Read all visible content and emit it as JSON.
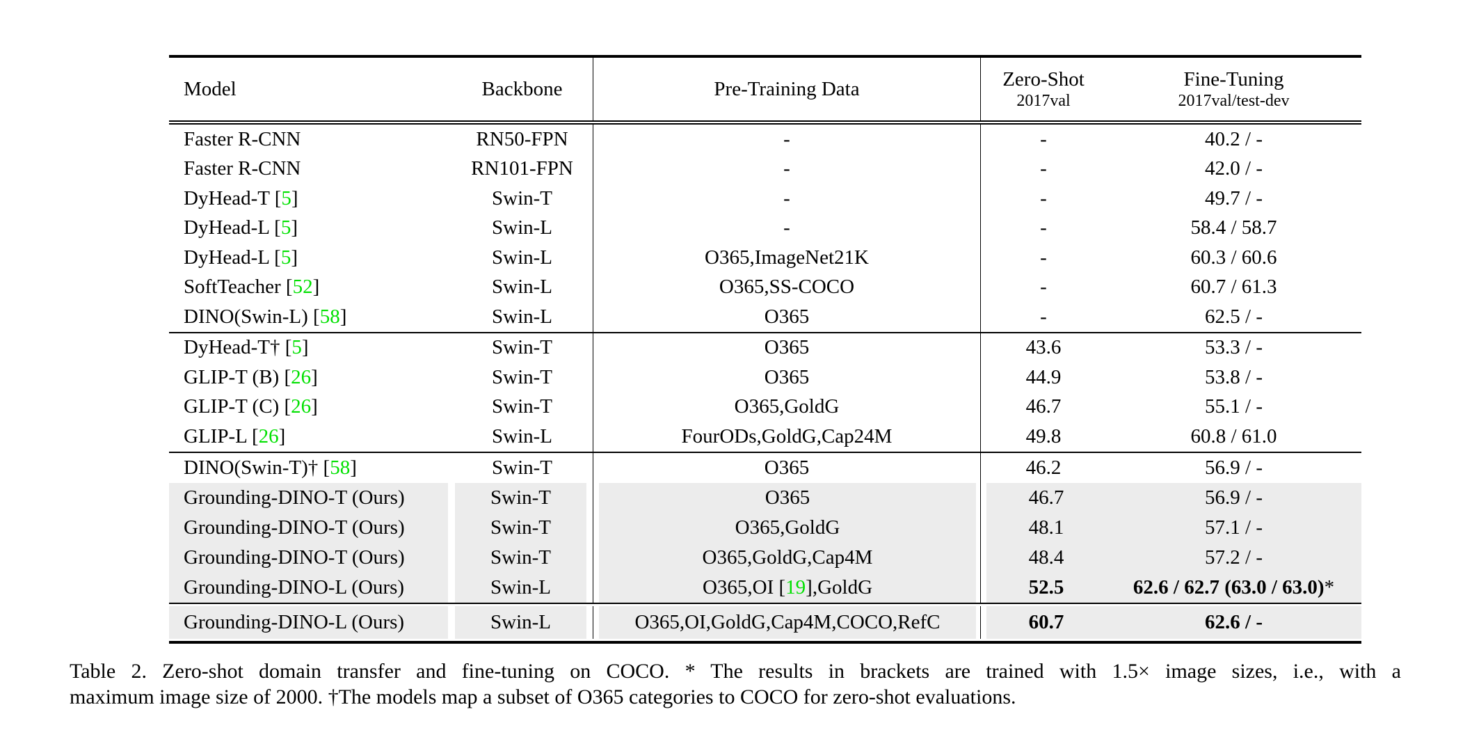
{
  "colors": {
    "citation_green": "#00e000",
    "row_highlight": "#ececec",
    "rule": "#000000"
  },
  "header": {
    "model": "Model",
    "backbone": "Backbone",
    "pretrain": "Pre-Training Data",
    "zero_shot_title": "Zero-Shot",
    "zero_shot_sub": "2017val",
    "fine_tuning_title": "Fine-Tuning",
    "fine_tuning_sub": "2017val/test-dev"
  },
  "blocks": [
    {
      "rows": [
        {
          "hl": false,
          "model": [
            {
              "t": "Faster R-CNN"
            }
          ],
          "backbone": "RN50-FPN",
          "pretrain": [
            {
              "t": "-"
            }
          ],
          "zeroshot": [
            {
              "t": "-"
            }
          ],
          "finetune": [
            {
              "t": "40.2 / -"
            }
          ]
        },
        {
          "hl": false,
          "model": [
            {
              "t": "Faster R-CNN"
            }
          ],
          "backbone": "RN101-FPN",
          "pretrain": [
            {
              "t": "-"
            }
          ],
          "zeroshot": [
            {
              "t": "-"
            }
          ],
          "finetune": [
            {
              "t": "42.0 / -"
            }
          ]
        },
        {
          "hl": false,
          "model": [
            {
              "t": "DyHead-T ["
            },
            {
              "t": "5",
              "g": true
            },
            {
              "t": "]"
            }
          ],
          "backbone": "Swin-T",
          "pretrain": [
            {
              "t": "-"
            }
          ],
          "zeroshot": [
            {
              "t": "-"
            }
          ],
          "finetune": [
            {
              "t": "49.7 / -"
            }
          ]
        },
        {
          "hl": false,
          "model": [
            {
              "t": "DyHead-L ["
            },
            {
              "t": "5",
              "g": true
            },
            {
              "t": "]"
            }
          ],
          "backbone": "Swin-L",
          "pretrain": [
            {
              "t": "-"
            }
          ],
          "zeroshot": [
            {
              "t": "-"
            }
          ],
          "finetune": [
            {
              "t": "58.4 / 58.7"
            }
          ]
        },
        {
          "hl": false,
          "model": [
            {
              "t": "DyHead-L ["
            },
            {
              "t": "5",
              "g": true
            },
            {
              "t": "]"
            }
          ],
          "backbone": "Swin-L",
          "pretrain": [
            {
              "t": "O365,ImageNet21K"
            }
          ],
          "zeroshot": [
            {
              "t": "-"
            }
          ],
          "finetune": [
            {
              "t": "60.3 / 60.6"
            }
          ]
        },
        {
          "hl": false,
          "model": [
            {
              "t": "SoftTeacher ["
            },
            {
              "t": "52",
              "g": true
            },
            {
              "t": "]"
            }
          ],
          "backbone": "Swin-L",
          "pretrain": [
            {
              "t": "O365,SS-COCO"
            }
          ],
          "zeroshot": [
            {
              "t": "-"
            }
          ],
          "finetune": [
            {
              "t": "60.7 / 61.3"
            }
          ]
        },
        {
          "hl": false,
          "model": [
            {
              "t": "DINO(Swin-L) ["
            },
            {
              "t": "58",
              "g": true
            },
            {
              "t": "]"
            }
          ],
          "backbone": "Swin-L",
          "pretrain": [
            {
              "t": "O365"
            }
          ],
          "zeroshot": [
            {
              "t": "-"
            }
          ],
          "finetune": [
            {
              "t": "62.5 / -"
            }
          ]
        }
      ]
    },
    {
      "rows": [
        {
          "hl": false,
          "model": [
            {
              "t": "DyHead-T† ["
            },
            {
              "t": "5",
              "g": true
            },
            {
              "t": "]"
            }
          ],
          "backbone": "Swin-T",
          "pretrain": [
            {
              "t": "O365"
            }
          ],
          "zeroshot": [
            {
              "t": "43.6"
            }
          ],
          "finetune": [
            {
              "t": "53.3 / -"
            }
          ]
        },
        {
          "hl": false,
          "model": [
            {
              "t": "GLIP-T (B) ["
            },
            {
              "t": "26",
              "g": true
            },
            {
              "t": "]"
            }
          ],
          "backbone": "Swin-T",
          "pretrain": [
            {
              "t": "O365"
            }
          ],
          "zeroshot": [
            {
              "t": "44.9"
            }
          ],
          "finetune": [
            {
              "t": "53.8 / -"
            }
          ]
        },
        {
          "hl": false,
          "model": [
            {
              "t": "GLIP-T (C) ["
            },
            {
              "t": "26",
              "g": true
            },
            {
              "t": "]"
            }
          ],
          "backbone": "Swin-T",
          "pretrain": [
            {
              "t": "O365,GoldG"
            }
          ],
          "zeroshot": [
            {
              "t": "46.7"
            }
          ],
          "finetune": [
            {
              "t": "55.1 / -"
            }
          ]
        },
        {
          "hl": false,
          "model": [
            {
              "t": "GLIP-L ["
            },
            {
              "t": "26",
              "g": true
            },
            {
              "t": "]"
            }
          ],
          "backbone": "Swin-L",
          "pretrain": [
            {
              "t": "FourODs,GoldG,Cap24M"
            }
          ],
          "zeroshot": [
            {
              "t": "49.8"
            }
          ],
          "finetune": [
            {
              "t": "60.8 / 61.0"
            }
          ]
        }
      ]
    },
    {
      "rows": [
        {
          "hl": false,
          "model": [
            {
              "t": "DINO(Swin-T)† ["
            },
            {
              "t": "58",
              "g": true
            },
            {
              "t": "]"
            }
          ],
          "backbone": "Swin-T",
          "pretrain": [
            {
              "t": "O365"
            }
          ],
          "zeroshot": [
            {
              "t": "46.2"
            }
          ],
          "finetune": [
            {
              "t": "56.9 / -"
            }
          ]
        },
        {
          "hl": true,
          "model": [
            {
              "t": "Grounding-DINO-T (Ours)"
            }
          ],
          "backbone": "Swin-T",
          "pretrain": [
            {
              "t": "O365"
            }
          ],
          "zeroshot": [
            {
              "t": "46.7"
            }
          ],
          "finetune": [
            {
              "t": "56.9 / -"
            }
          ]
        },
        {
          "hl": true,
          "model": [
            {
              "t": "Grounding-DINO-T (Ours)"
            }
          ],
          "backbone": "Swin-T",
          "pretrain": [
            {
              "t": "O365,GoldG"
            }
          ],
          "zeroshot": [
            {
              "t": "48.1"
            }
          ],
          "finetune": [
            {
              "t": "57.1 / -"
            }
          ]
        },
        {
          "hl": true,
          "model": [
            {
              "t": "Grounding-DINO-T (Ours)"
            }
          ],
          "backbone": "Swin-T",
          "pretrain": [
            {
              "t": "O365,GoldG,Cap4M"
            }
          ],
          "zeroshot": [
            {
              "t": "48.4"
            }
          ],
          "finetune": [
            {
              "t": "57.2 / -"
            }
          ]
        },
        {
          "hl": true,
          "model": [
            {
              "t": "Grounding-DINO-L (Ours)"
            }
          ],
          "backbone": "Swin-L",
          "pretrain": [
            {
              "t": "O365,OI ["
            },
            {
              "t": "19",
              "g": true
            },
            {
              "t": "],GoldG"
            }
          ],
          "zeroshot": [
            {
              "t": "52.5",
              "b": true
            }
          ],
          "finetune": [
            {
              "t": "62.6 / 62.7 (63.0 / 63.0)",
              "b": true
            },
            {
              "t": "*"
            }
          ]
        }
      ]
    },
    {
      "rows": [
        {
          "hl": true,
          "model": [
            {
              "t": "Grounding-DINO-L (Ours)"
            }
          ],
          "backbone": "Swin-L",
          "pretrain": [
            {
              "t": "O365,OI,GoldG,Cap4M,COCO,RefC"
            }
          ],
          "zeroshot": [
            {
              "t": "60.7",
              "b": true
            }
          ],
          "finetune": [
            {
              "t": "62.6 / -",
              "b": true
            }
          ]
        }
      ]
    }
  ],
  "caption": {
    "line1": "Table 2.  Zero-shot domain transfer and fine-tuning on COCO. * The results in brackets are trained with 1.5× image sizes, i.e., with a",
    "line2": "maximum image size of 2000. †The models map a subset of O365 categories to COCO for zero-shot evaluations."
  }
}
